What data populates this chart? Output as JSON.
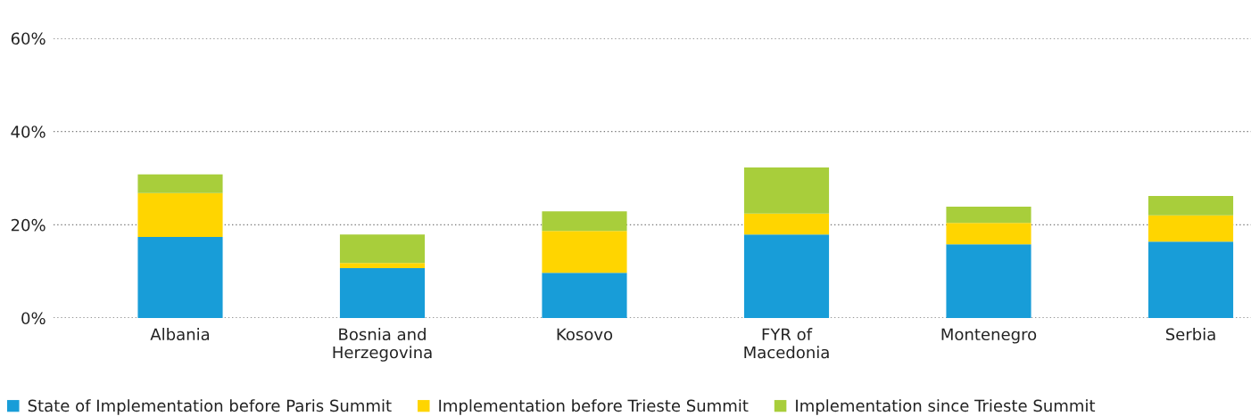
{
  "chart_data": {
    "type": "bar",
    "stacked": true,
    "categories": [
      "Albania",
      "Bosnia and\nHerzegovina",
      "Kosovo",
      "FYR of\nMacedonia",
      "Montenegro",
      "Serbia"
    ],
    "series": [
      {
        "name": "State of Implementation before Paris Summit",
        "color": "#189dd8",
        "values": [
          17.4,
          10.7,
          9.7,
          17.9,
          15.8,
          16.4
        ]
      },
      {
        "name": "Implementation before Trieste Summit",
        "color": "#ffd500",
        "values": [
          9.4,
          1.1,
          9.0,
          4.5,
          4.6,
          5.6
        ]
      },
      {
        "name": "Implementation since Trieste Summit",
        "color": "#a8ce3b",
        "values": [
          4.0,
          6.1,
          4.2,
          9.9,
          3.5,
          4.2
        ]
      }
    ],
    "ylim": [
      0,
      60
    ],
    "yticks": [
      {
        "value": 0,
        "label": "0%"
      },
      {
        "value": 20,
        "label": "20%"
      },
      {
        "value": 40,
        "label": "40%"
      },
      {
        "value": 60,
        "label": "60%"
      }
    ],
    "grid": "y",
    "legend": "bottom"
  }
}
